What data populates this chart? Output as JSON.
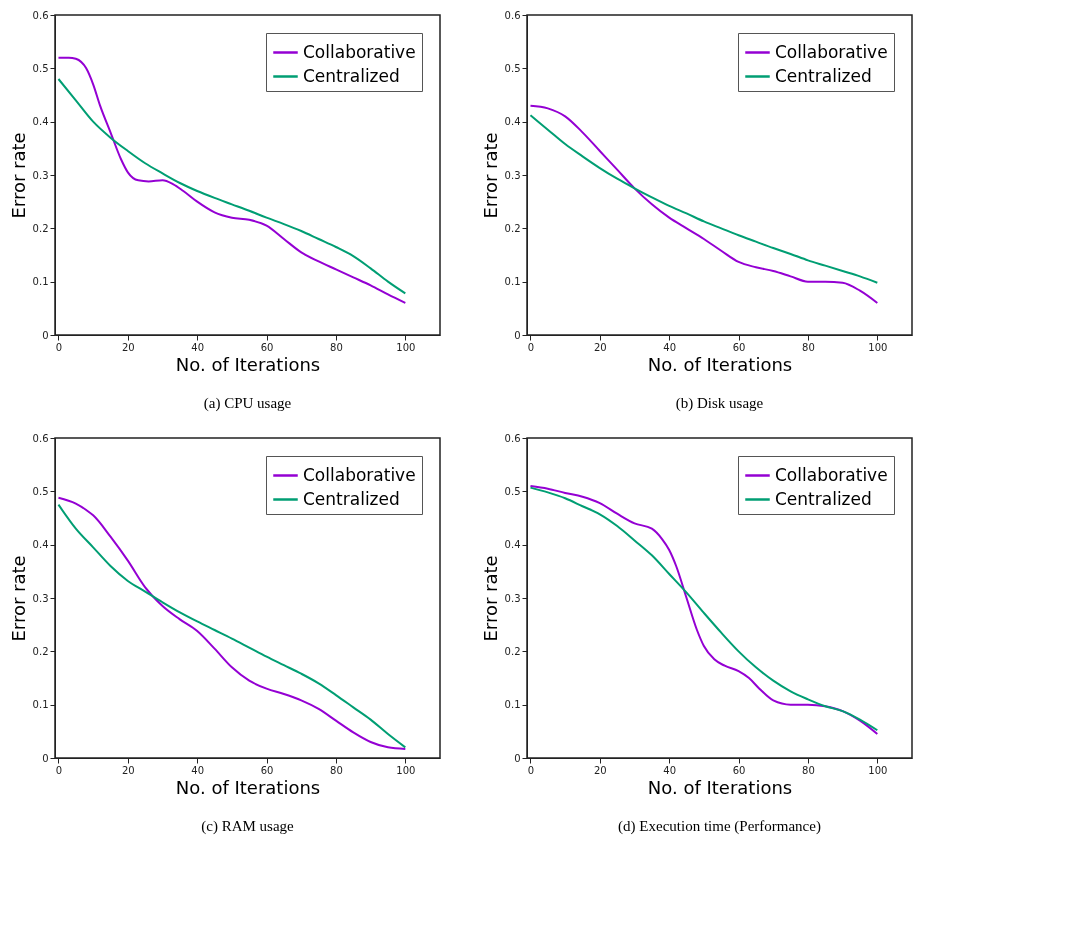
{
  "chart_data": [
    {
      "type": "line",
      "title": "(a)  CPU usage",
      "xlabel": "No. of Iterations",
      "ylabel": "Error rate",
      "xlim": [
        -1,
        110
      ],
      "xticks": [
        0,
        20,
        40,
        60,
        80,
        100
      ],
      "ylim": [
        0,
        0.6
      ],
      "yticks": [
        0,
        0.1,
        0.2,
        0.3,
        0.4,
        0.5,
        0.6
      ],
      "grid": false,
      "legend": "top right",
      "series": [
        {
          "name": "Collaborative",
          "color": "#9400d3",
          "x": [
            0,
            3,
            5,
            8,
            10,
            12,
            15,
            18,
            20,
            23,
            26,
            30,
            33,
            36,
            40,
            45,
            50,
            55,
            60,
            65,
            70,
            75,
            80,
            85,
            90,
            95,
            100
          ],
          "values": [
            0.52,
            0.52,
            0.518,
            0.5,
            0.47,
            0.43,
            0.38,
            0.33,
            0.305,
            0.29,
            0.288,
            0.29,
            0.283,
            0.27,
            0.25,
            0.23,
            0.22,
            0.216,
            0.205,
            0.18,
            0.155,
            0.138,
            0.123,
            0.108,
            0.093,
            0.076,
            0.06
          ]
        },
        {
          "name": "Centralized",
          "color": "#009e73",
          "x": [
            0,
            5,
            10,
            15,
            20,
            25,
            30,
            35,
            40,
            45,
            50,
            55,
            60,
            65,
            70,
            75,
            80,
            85,
            90,
            95,
            100
          ],
          "values": [
            0.48,
            0.44,
            0.4,
            0.37,
            0.345,
            0.322,
            0.303,
            0.285,
            0.27,
            0.257,
            0.245,
            0.233,
            0.22,
            0.208,
            0.195,
            0.18,
            0.165,
            0.148,
            0.125,
            0.1,
            0.078
          ]
        }
      ]
    },
    {
      "type": "line",
      "title": "(b) Disk usage",
      "xlabel": "No. of Iterations",
      "ylabel": "Error rate",
      "xlim": [
        -1,
        110
      ],
      "xticks": [
        0,
        20,
        40,
        60,
        80,
        100
      ],
      "ylim": [
        0,
        0.6
      ],
      "yticks": [
        0,
        0.1,
        0.2,
        0.3,
        0.4,
        0.5,
        0.6
      ],
      "grid": false,
      "legend": "top right",
      "series": [
        {
          "name": "Collaborative",
          "color": "#9400d3",
          "x": [
            0,
            5,
            10,
            15,
            20,
            25,
            30,
            35,
            40,
            45,
            50,
            55,
            60,
            65,
            70,
            75,
            80,
            85,
            90,
            95,
            100
          ],
          "values": [
            0.43,
            0.425,
            0.41,
            0.38,
            0.345,
            0.31,
            0.275,
            0.245,
            0.22,
            0.2,
            0.18,
            0.158,
            0.137,
            0.127,
            0.12,
            0.11,
            0.1,
            0.1,
            0.098,
            0.083,
            0.06
          ]
        },
        {
          "name": "Centralized",
          "color": "#009e73",
          "x": [
            0,
            5,
            10,
            15,
            20,
            25,
            30,
            35,
            40,
            45,
            50,
            55,
            60,
            65,
            70,
            75,
            80,
            85,
            90,
            95,
            100
          ],
          "values": [
            0.412,
            0.385,
            0.358,
            0.335,
            0.313,
            0.293,
            0.275,
            0.258,
            0.242,
            0.228,
            0.213,
            0.2,
            0.187,
            0.175,
            0.163,
            0.152,
            0.14,
            0.13,
            0.12,
            0.11,
            0.098
          ]
        }
      ]
    },
    {
      "type": "line",
      "title": "(c)  RAM usage",
      "xlabel": "No. of Iterations",
      "ylabel": "Error rate",
      "xlim": [
        -1,
        110
      ],
      "xticks": [
        0,
        20,
        40,
        60,
        80,
        100
      ],
      "ylim": [
        0,
        0.6
      ],
      "yticks": [
        0,
        0.1,
        0.2,
        0.3,
        0.4,
        0.5,
        0.6
      ],
      "grid": false,
      "legend": "top right",
      "series": [
        {
          "name": "Collaborative",
          "color": "#9400d3",
          "x": [
            0,
            5,
            8,
            10,
            15,
            20,
            25,
            30,
            35,
            40,
            45,
            50,
            55,
            60,
            65,
            70,
            75,
            80,
            85,
            90,
            95,
            100
          ],
          "values": [
            0.488,
            0.477,
            0.465,
            0.455,
            0.415,
            0.37,
            0.32,
            0.285,
            0.26,
            0.238,
            0.205,
            0.17,
            0.145,
            0.13,
            0.12,
            0.108,
            0.092,
            0.07,
            0.048,
            0.03,
            0.02,
            0.017
          ]
        },
        {
          "name": "Centralized",
          "color": "#009e73",
          "x": [
            0,
            5,
            10,
            15,
            20,
            25,
            30,
            35,
            40,
            45,
            50,
            55,
            60,
            65,
            70,
            75,
            80,
            85,
            90,
            95,
            100
          ],
          "values": [
            0.475,
            0.43,
            0.395,
            0.36,
            0.332,
            0.312,
            0.292,
            0.273,
            0.256,
            0.24,
            0.224,
            0.207,
            0.19,
            0.174,
            0.158,
            0.14,
            0.118,
            0.095,
            0.072,
            0.045,
            0.02
          ]
        }
      ]
    },
    {
      "type": "line",
      "title": "(d)  Execution time (Performance)",
      "xlabel": "No. of Iterations",
      "ylabel": "Error rate",
      "xlim": [
        -1,
        110
      ],
      "xticks": [
        0,
        20,
        40,
        60,
        80,
        100
      ],
      "ylim": [
        0,
        0.6
      ],
      "yticks": [
        0,
        0.1,
        0.2,
        0.3,
        0.4,
        0.5,
        0.6
      ],
      "grid": false,
      "legend": "top right",
      "series": [
        {
          "name": "Collaborative",
          "color": "#9400d3",
          "x": [
            0,
            5,
            10,
            15,
            20,
            25,
            30,
            35,
            38,
            40,
            42,
            45,
            48,
            50,
            53,
            56,
            60,
            63,
            66,
            70,
            75,
            80,
            85,
            90,
            95,
            100
          ],
          "values": [
            0.51,
            0.505,
            0.497,
            0.49,
            0.478,
            0.458,
            0.44,
            0.43,
            0.41,
            0.39,
            0.36,
            0.3,
            0.24,
            0.21,
            0.185,
            0.173,
            0.163,
            0.15,
            0.13,
            0.108,
            0.1,
            0.1,
            0.097,
            0.088,
            0.07,
            0.045
          ]
        },
        {
          "name": "Centralized",
          "color": "#009e73",
          "x": [
            0,
            5,
            10,
            15,
            20,
            25,
            30,
            35,
            40,
            45,
            50,
            55,
            60,
            65,
            70,
            75,
            80,
            85,
            90,
            95,
            100
          ],
          "values": [
            0.507,
            0.498,
            0.487,
            0.472,
            0.457,
            0.435,
            0.408,
            0.38,
            0.345,
            0.31,
            0.272,
            0.235,
            0.2,
            0.17,
            0.145,
            0.125,
            0.11,
            0.097,
            0.088,
            0.072,
            0.052
          ]
        }
      ]
    }
  ]
}
